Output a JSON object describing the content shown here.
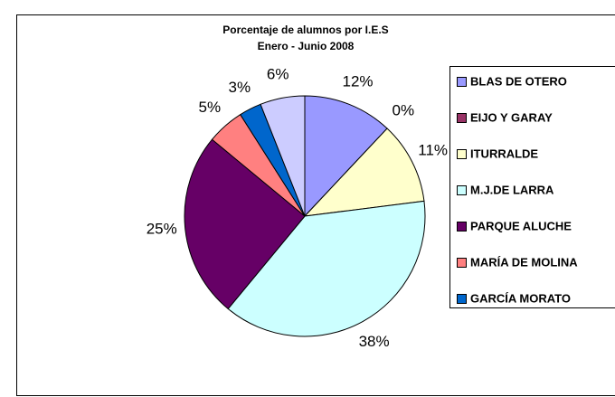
{
  "chart_data": {
    "type": "pie",
    "title": "Porcentaje de alumnos por I.E.S",
    "subtitle": "Enero - Junio 2008",
    "categories": [
      "BLAS DE OTERO",
      "EIJO Y GARAY",
      "ITURRALDE",
      "M.J.DE LARRA",
      "PARQUE ALUCHE",
      "MARÍA DE MOLINA",
      "GARCÍA MORATO",
      null
    ],
    "values": [
      12,
      0,
      11,
      38,
      25,
      5,
      3,
      6
    ],
    "value_labels": [
      "12%",
      "0%",
      "11%",
      "38%",
      "25%",
      "5%",
      "3%",
      "6%"
    ],
    "colors": [
      "#9999ff",
      "#993366",
      "#ffffcc",
      "#ccffff",
      "#660066",
      "#ff8080",
      "#0066cc",
      "#ccccff"
    ],
    "legend": "right"
  }
}
